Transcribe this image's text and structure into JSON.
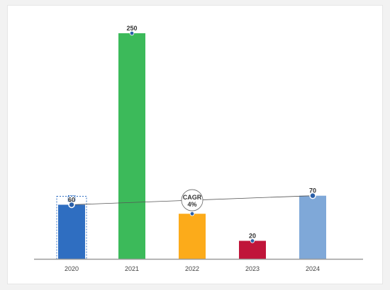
{
  "chart_data": {
    "type": "bar",
    "categories": [
      "2020",
      "2021",
      "2022",
      "2023",
      "2024"
    ],
    "values": [
      60,
      250,
      50,
      20,
      70
    ],
    "colors": [
      "#2f6ec1",
      "#3cba5a",
      "#fcab1a",
      "#c0153a",
      "#7fa8d8"
    ],
    "data_labels": [
      "60",
      "250",
      "50",
      "20",
      "70"
    ],
    "title": "",
    "xlabel": "",
    "ylabel": "",
    "grid": false,
    "selected_category": "2020",
    "annotation": {
      "type": "trend-line",
      "from": "2020",
      "to": "2024",
      "label_line1": "CAGR",
      "label_line2": "4%"
    }
  }
}
